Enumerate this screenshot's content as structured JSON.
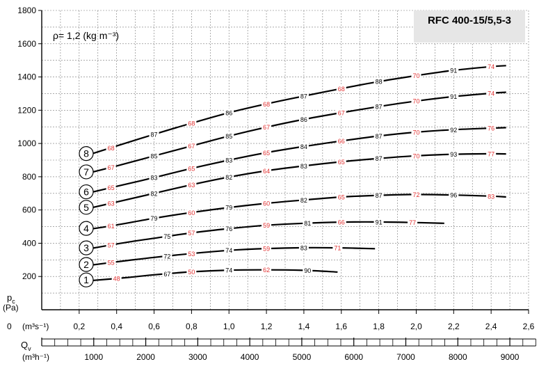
{
  "chart_data": {
    "type": "line",
    "title": "RFC 400-15/5,5-3",
    "density_label": "ρ= 1,2 (kg m⁻³)",
    "ylabel": "p",
    "ylabel_sub": "c",
    "yunit": "(Pa)",
    "xlabel": "Q",
    "xlabel_sub": "v",
    "xunit_top": "(m³s⁻¹)",
    "xunit_bottom": "(m³h⁻¹)",
    "x_origin_label": "0",
    "xlim": [
      0,
      2.6
    ],
    "ylim": [
      0,
      1800
    ],
    "grid": true,
    "y_ticks": [
      200,
      400,
      600,
      800,
      1000,
      1200,
      1400,
      1600,
      1800
    ],
    "x_ticks": [
      0.2,
      0.4,
      0.6,
      0.8,
      1.0,
      1.2,
      1.4,
      1.6,
      1.8,
      2.0,
      2.2,
      2.4,
      2.6
    ],
    "x_tick_labels": [
      "0,2",
      "0,4",
      "0,6",
      "0,8",
      "1,0",
      "1,2",
      "1,4",
      "1,6",
      "1,8",
      "2,0",
      "2,2",
      "2,4",
      "2,6"
    ],
    "x2_ticks": [
      1000,
      2000,
      3000,
      4000,
      5000,
      6000,
      7000,
      8000,
      9000
    ],
    "colors": {
      "curve": "#000000",
      "efficiency_label": "#e03030",
      "grid": "#555555",
      "title_box": "#e6e6e6"
    },
    "series": [
      {
        "name": "1",
        "points": [
          [
            0.26,
            175
          ],
          [
            0.45,
            193
          ],
          [
            0.6,
            210
          ],
          [
            0.8,
            228
          ],
          [
            1.0,
            238
          ],
          [
            1.2,
            240
          ],
          [
            1.4,
            237
          ],
          [
            1.58,
            227
          ]
        ],
        "labels": [
          {
            "x": 0.4,
            "text": "48",
            "red": true
          },
          {
            "x": 0.67,
            "text": "67",
            "red": false
          },
          {
            "x": 0.8,
            "text": "50",
            "red": true
          },
          {
            "x": 1.0,
            "text": "74",
            "red": false
          },
          {
            "x": 1.2,
            "text": "62",
            "red": true
          },
          {
            "x": 1.42,
            "text": "90",
            "red": false
          }
        ]
      },
      {
        "name": "2",
        "points": [
          [
            0.26,
            268
          ],
          [
            0.45,
            295
          ],
          [
            0.6,
            315
          ],
          [
            0.8,
            338
          ],
          [
            1.0,
            357
          ],
          [
            1.2,
            368
          ],
          [
            1.4,
            373
          ],
          [
            1.6,
            372
          ],
          [
            1.78,
            367
          ]
        ],
        "labels": [
          {
            "x": 0.37,
            "text": "55",
            "red": true
          },
          {
            "x": 0.67,
            "text": "72",
            "red": false
          },
          {
            "x": 0.8,
            "text": "53",
            "red": true
          },
          {
            "x": 1.0,
            "text": "74",
            "red": false
          },
          {
            "x": 1.2,
            "text": "59",
            "red": true
          },
          {
            "x": 1.4,
            "text": "83",
            "red": false
          },
          {
            "x": 1.58,
            "text": "71",
            "red": true
          }
        ]
      },
      {
        "name": "3",
        "points": [
          [
            0.26,
            368
          ],
          [
            0.45,
            405
          ],
          [
            0.6,
            430
          ],
          [
            0.8,
            462
          ],
          [
            1.0,
            488
          ],
          [
            1.2,
            508
          ],
          [
            1.4,
            520
          ],
          [
            1.6,
            527
          ],
          [
            1.8,
            528
          ],
          [
            2.0,
            524
          ],
          [
            2.15,
            520
          ]
        ],
        "labels": [
          {
            "x": 0.37,
            "text": "57",
            "red": true
          },
          {
            "x": 0.67,
            "text": "75",
            "red": false
          },
          {
            "x": 0.8,
            "text": "57",
            "red": true
          },
          {
            "x": 1.0,
            "text": "76",
            "red": false
          },
          {
            "x": 1.2,
            "text": "59",
            "red": true
          },
          {
            "x": 1.42,
            "text": "81",
            "red": false
          },
          {
            "x": 1.6,
            "text": "66",
            "red": true
          },
          {
            "x": 1.8,
            "text": "91",
            "red": false
          },
          {
            "x": 1.98,
            "text": "77",
            "red": true
          }
        ]
      },
      {
        "name": "4",
        "points": [
          [
            0.26,
            485
          ],
          [
            0.4,
            510
          ],
          [
            0.6,
            550
          ],
          [
            0.8,
            585
          ],
          [
            1.0,
            615
          ],
          [
            1.2,
            640
          ],
          [
            1.4,
            660
          ],
          [
            1.6,
            678
          ],
          [
            1.8,
            688
          ],
          [
            2.0,
            693
          ],
          [
            2.2,
            690
          ],
          [
            2.4,
            683
          ],
          [
            2.48,
            678
          ]
        ],
        "labels": [
          {
            "x": 0.37,
            "text": "61",
            "red": true
          },
          {
            "x": 0.6,
            "text": "79",
            "red": false
          },
          {
            "x": 0.8,
            "text": "60",
            "red": true
          },
          {
            "x": 1.0,
            "text": "79",
            "red": false
          },
          {
            "x": 1.2,
            "text": "60",
            "red": true
          },
          {
            "x": 1.4,
            "text": "82",
            "red": false
          },
          {
            "x": 1.6,
            "text": "65",
            "red": true
          },
          {
            "x": 1.8,
            "text": "87",
            "red": false
          },
          {
            "x": 2.0,
            "text": "72",
            "red": true
          },
          {
            "x": 2.2,
            "text": "96",
            "red": false
          },
          {
            "x": 2.4,
            "text": "83",
            "red": true
          }
        ]
      },
      {
        "name": "5",
        "points": [
          [
            0.26,
            612
          ],
          [
            0.4,
            648
          ],
          [
            0.6,
            700
          ],
          [
            0.8,
            752
          ],
          [
            1.0,
            798
          ],
          [
            1.2,
            836
          ],
          [
            1.4,
            865
          ],
          [
            1.6,
            890
          ],
          [
            1.8,
            910
          ],
          [
            2.0,
            926
          ],
          [
            2.2,
            935
          ],
          [
            2.4,
            938
          ],
          [
            2.48,
            937
          ]
        ],
        "labels": [
          {
            "x": 0.37,
            "text": "63",
            "red": true
          },
          {
            "x": 0.6,
            "text": "82",
            "red": false
          },
          {
            "x": 0.8,
            "text": "63",
            "red": true
          },
          {
            "x": 1.0,
            "text": "82",
            "red": false
          },
          {
            "x": 1.2,
            "text": "64",
            "red": true
          },
          {
            "x": 1.4,
            "text": "83",
            "red": false
          },
          {
            "x": 1.6,
            "text": "65",
            "red": true
          },
          {
            "x": 1.8,
            "text": "87",
            "red": false
          },
          {
            "x": 2.0,
            "text": "70",
            "red": true
          },
          {
            "x": 2.2,
            "text": "93",
            "red": false
          },
          {
            "x": 2.4,
            "text": "77",
            "red": true
          }
        ]
      },
      {
        "name": "6",
        "points": [
          [
            0.26,
            705
          ],
          [
            0.4,
            742
          ],
          [
            0.6,
            795
          ],
          [
            0.8,
            850
          ],
          [
            1.0,
            900
          ],
          [
            1.2,
            945
          ],
          [
            1.4,
            982
          ],
          [
            1.6,
            1015
          ],
          [
            1.8,
            1045
          ],
          [
            2.0,
            1068
          ],
          [
            2.2,
            1083
          ],
          [
            2.4,
            1092
          ],
          [
            2.48,
            1095
          ]
        ],
        "labels": [
          {
            "x": 0.37,
            "text": "65",
            "red": true
          },
          {
            "x": 0.6,
            "text": "83",
            "red": false
          },
          {
            "x": 0.8,
            "text": "65",
            "red": true
          },
          {
            "x": 1.0,
            "text": "83",
            "red": false
          },
          {
            "x": 1.2,
            "text": "65",
            "red": true
          },
          {
            "x": 1.4,
            "text": "84",
            "red": false
          },
          {
            "x": 1.6,
            "text": "66",
            "red": true
          },
          {
            "x": 1.8,
            "text": "87",
            "red": false
          },
          {
            "x": 2.0,
            "text": "70",
            "red": true
          },
          {
            "x": 2.2,
            "text": "92",
            "red": false
          },
          {
            "x": 2.4,
            "text": "76",
            "red": true
          }
        ]
      },
      {
        "name": "7",
        "points": [
          [
            0.26,
            825
          ],
          [
            0.4,
            865
          ],
          [
            0.6,
            925
          ],
          [
            0.8,
            985
          ],
          [
            1.0,
            1045
          ],
          [
            1.2,
            1098
          ],
          [
            1.4,
            1145
          ],
          [
            1.6,
            1185
          ],
          [
            1.8,
            1222
          ],
          [
            2.0,
            1255
          ],
          [
            2.2,
            1282
          ],
          [
            2.4,
            1302
          ],
          [
            2.48,
            1308
          ]
        ],
        "labels": [
          {
            "x": 0.37,
            "text": "67",
            "red": true
          },
          {
            "x": 0.6,
            "text": "85",
            "red": false
          },
          {
            "x": 0.8,
            "text": "67",
            "red": true
          },
          {
            "x": 1.0,
            "text": "85",
            "red": false
          },
          {
            "x": 1.2,
            "text": "67",
            "red": true
          },
          {
            "x": 1.4,
            "text": "86",
            "red": false
          },
          {
            "x": 1.6,
            "text": "67",
            "red": true
          },
          {
            "x": 1.8,
            "text": "87",
            "red": false
          },
          {
            "x": 2.0,
            "text": "70",
            "red": true
          },
          {
            "x": 2.2,
            "text": "91",
            "red": false
          },
          {
            "x": 2.4,
            "text": "74",
            "red": true
          }
        ]
      },
      {
        "name": "8",
        "points": [
          [
            0.26,
            935
          ],
          [
            0.4,
            985
          ],
          [
            0.6,
            1055
          ],
          [
            0.8,
            1122
          ],
          [
            1.0,
            1185
          ],
          [
            1.2,
            1238
          ],
          [
            1.4,
            1285
          ],
          [
            1.6,
            1330
          ],
          [
            1.8,
            1372
          ],
          [
            2.0,
            1408
          ],
          [
            2.2,
            1440
          ],
          [
            2.4,
            1462
          ],
          [
            2.48,
            1468
          ]
        ],
        "labels": [
          {
            "x": 0.37,
            "text": "68",
            "red": true
          },
          {
            "x": 0.6,
            "text": "87",
            "red": false
          },
          {
            "x": 0.8,
            "text": "68",
            "red": true
          },
          {
            "x": 1.0,
            "text": "86",
            "red": false
          },
          {
            "x": 1.2,
            "text": "68",
            "red": true
          },
          {
            "x": 1.4,
            "text": "87",
            "red": false
          },
          {
            "x": 1.6,
            "text": "68",
            "red": true
          },
          {
            "x": 1.8,
            "text": "88",
            "red": false
          },
          {
            "x": 2.0,
            "text": "70",
            "red": true
          },
          {
            "x": 2.2,
            "text": "91",
            "red": false
          },
          {
            "x": 2.4,
            "text": "74",
            "red": true
          }
        ]
      }
    ]
  }
}
